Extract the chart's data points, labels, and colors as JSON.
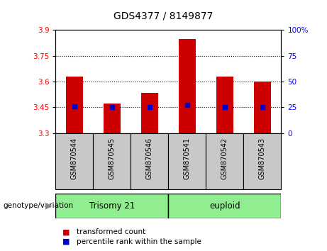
{
  "title": "GDS4377 / 8149877",
  "samples": [
    "GSM870544",
    "GSM870545",
    "GSM870546",
    "GSM870541",
    "GSM870542",
    "GSM870543"
  ],
  "bar_values": [
    3.63,
    3.47,
    3.535,
    3.85,
    3.63,
    3.6
  ],
  "percentile_values": [
    3.455,
    3.45,
    3.45,
    3.462,
    3.45,
    3.45
  ],
  "ymin": 3.3,
  "ymax": 3.9,
  "yticks_left": [
    3.3,
    3.45,
    3.6,
    3.75,
    3.9
  ],
  "yticks_right": [
    0,
    25,
    50,
    75,
    100
  ],
  "grid_values": [
    3.45,
    3.6,
    3.75
  ],
  "bar_color": "#cc0000",
  "blue_color": "#0000cc",
  "group1_label": "Trisomy 21",
  "group2_label": "euploid",
  "group_color": "#90ee90",
  "xlabel_area_color": "#c8c8c8",
  "legend_red_label": "transformed count",
  "legend_blue_label": "percentile rank within the sample",
  "genotype_label": "genotype/variation"
}
